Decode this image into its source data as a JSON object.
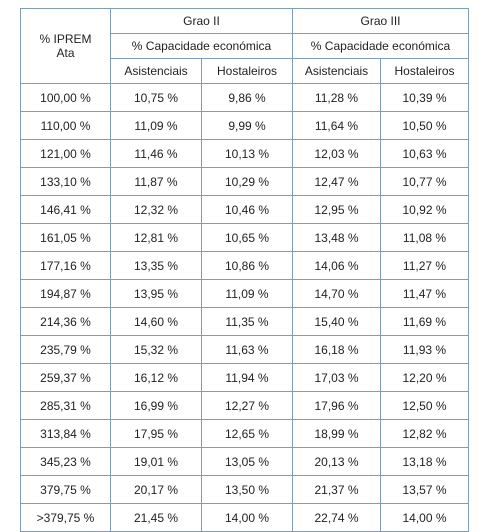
{
  "table": {
    "corner_line1": "% IPREM",
    "corner_line2": "Ata",
    "group1": "Grao II",
    "group2": "Grao III",
    "subgroup1": "% Capacidade económica",
    "subgroup2": "% Capacidade económica",
    "col_labels": [
      "Asistenciais",
      "Hostaleiros",
      "Asistenciais",
      "Hostaleiros"
    ],
    "rows": [
      [
        "100,00 %",
        "10,75 %",
        "9,86 %",
        "11,28 %",
        "10,39 %"
      ],
      [
        "110,00 %",
        "11,09 %",
        "9,99 %",
        "11,64 %",
        "10,50 %"
      ],
      [
        "121,00 %",
        "11,46 %",
        "10,13 %",
        "12,03 %",
        "10,63 %"
      ],
      [
        "133,10 %",
        "11,87 %",
        "10,29 %",
        "12,47 %",
        "10,77 %"
      ],
      [
        "146,41 %",
        "12,32 %",
        "10,46 %",
        "12,95 %",
        "10,92 %"
      ],
      [
        "161,05 %",
        "12,81 %",
        "10,65 %",
        "13,48 %",
        "11,08 %"
      ],
      [
        "177,16 %",
        "13,35 %",
        "10,86 %",
        "14,06 %",
        "11,27 %"
      ],
      [
        "194,87 %",
        "13,95 %",
        "11,09 %",
        "14,70 %",
        "11,47 %"
      ],
      [
        "214,36 %",
        "14,60 %",
        "11,35 %",
        "15,40 %",
        "11,69 %"
      ],
      [
        "235,79 %",
        "15,32 %",
        "11,63 %",
        "16,18 %",
        "11,93 %"
      ],
      [
        "259,37 %",
        "16,12 %",
        "11,94 %",
        "17,03 %",
        "12,20 %"
      ],
      [
        "285,31 %",
        "16,99 %",
        "12,27 %",
        "17,96 %",
        "12,50 %"
      ],
      [
        "313,84 %",
        "17,95 %",
        "12,65 %",
        "18,99 %",
        "12,82 %"
      ],
      [
        "345,23 %",
        "19,01 %",
        "13,05 %",
        "20,13 %",
        "13,18 %"
      ],
      [
        "379,75 %",
        "20,17 %",
        "13,50 %",
        "21,37 %",
        "13,57 %"
      ],
      [
        ">379,75 %",
        "21,45 %",
        "14,00 %",
        "22,74 %",
        "14,00 %"
      ]
    ]
  }
}
